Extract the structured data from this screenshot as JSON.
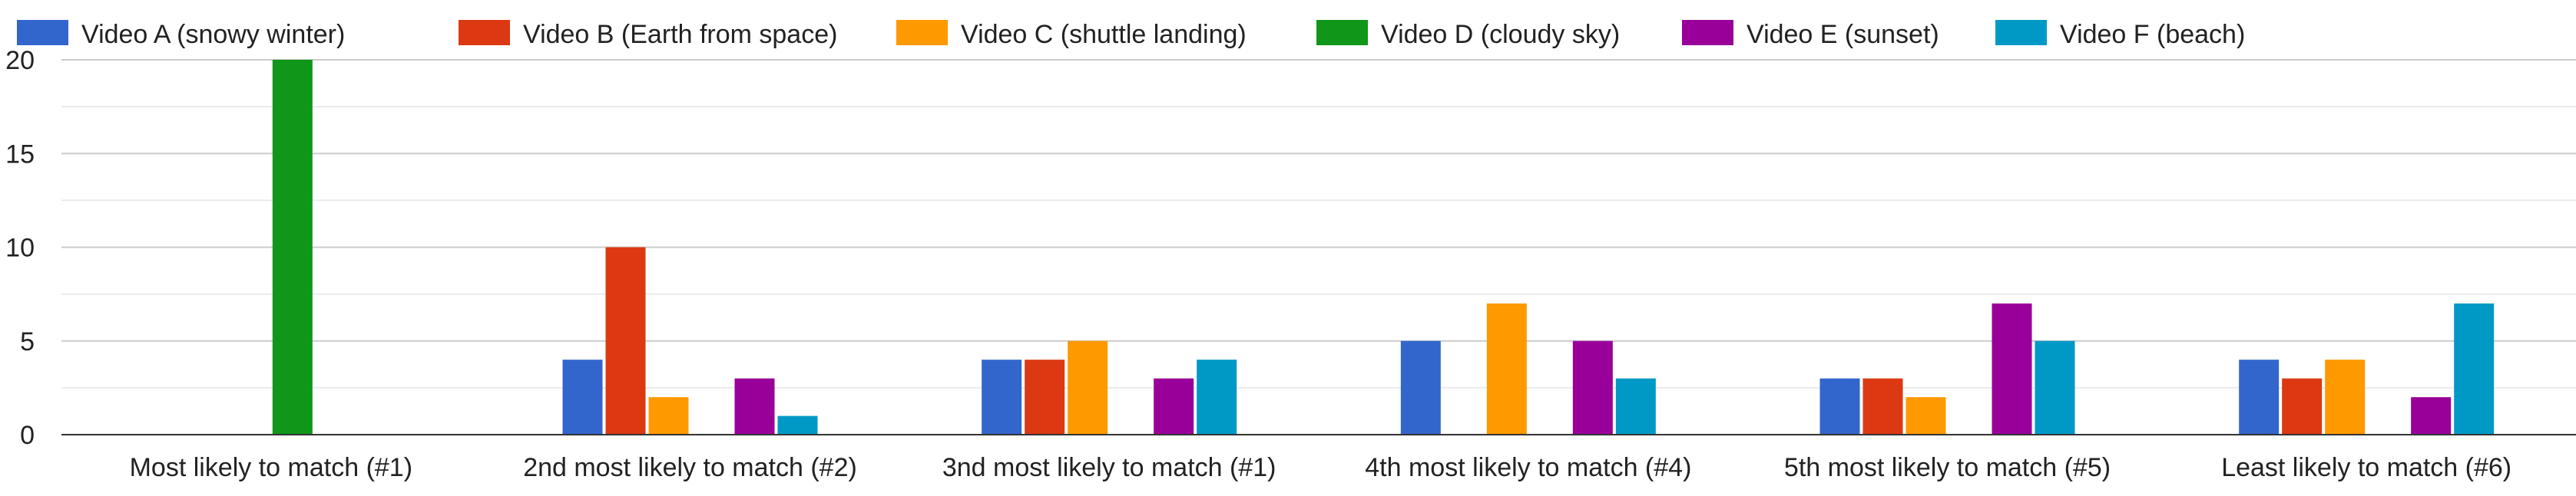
{
  "chart_data": {
    "type": "bar",
    "title": "",
    "xlabel": "",
    "ylabel": "",
    "ylim": [
      0,
      20
    ],
    "yticks": [
      0,
      5,
      10,
      15,
      20
    ],
    "grid": true,
    "legend_position": "top",
    "categories": [
      "Most likely to match (#1)",
      "2nd most likely to match (#2)",
      "3nd most likely to match (#1)",
      "4th most likely to match (#4)",
      "5th most likely to match (#5)",
      "Least likely to match (#6)"
    ],
    "series": [
      {
        "name": "Video A (snowy winter)",
        "color": "#3366cc",
        "values": [
          0,
          4,
          4,
          5,
          3,
          4
        ]
      },
      {
        "name": "Video B (Earth from space)",
        "color": "#dc3912",
        "values": [
          0,
          10,
          4,
          0,
          3,
          3
        ]
      },
      {
        "name": "Video C (shuttle landing)",
        "color": "#ff9900",
        "values": [
          0,
          2,
          5,
          7,
          2,
          4
        ]
      },
      {
        "name": "Video D (cloudy sky)",
        "color": "#109618",
        "values": [
          20,
          0,
          0,
          0,
          0,
          0
        ]
      },
      {
        "name": "Video E (sunset)",
        "color": "#990099",
        "values": [
          0,
          3,
          3,
          5,
          7,
          2
        ]
      },
      {
        "name": "Video F (beach)",
        "color": "#0099c6",
        "values": [
          0,
          1,
          4,
          3,
          5,
          7
        ]
      }
    ]
  }
}
